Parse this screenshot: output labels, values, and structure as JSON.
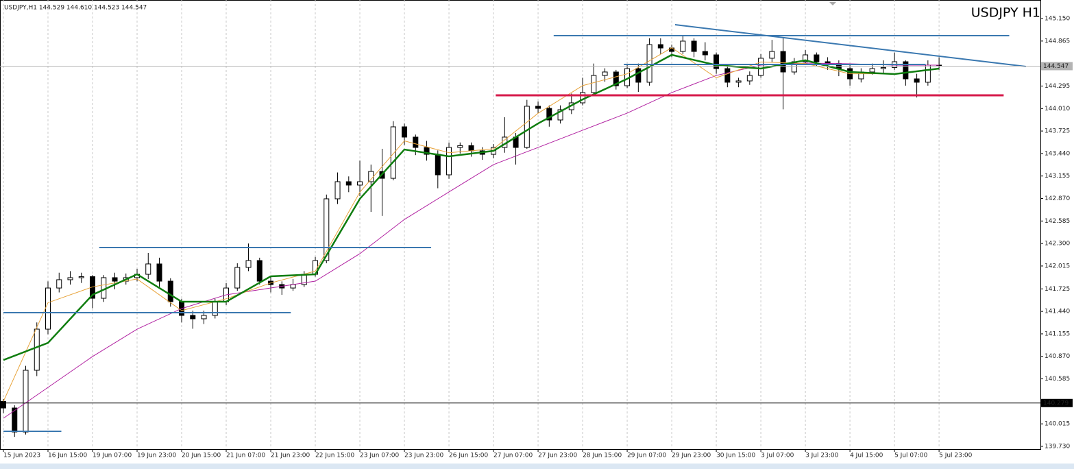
{
  "chart_data": {
    "type": "candlestick",
    "header": "USDJPY,H1  144.529 144.610 144.523 144.547",
    "title": "USDJPY H1",
    "bull_color": "#ffffff",
    "bear_color": "#000000",
    "wick_color": "#000000",
    "grid": true,
    "ylim": [
      139.695,
      145.385
    ],
    "xlim": [
      -0.3,
      93.1
    ],
    "yticks": [
      {
        "value": 145.15,
        "label": "145.150"
      },
      {
        "value": 144.865,
        "label": "144.865"
      },
      {
        "value": 144.295,
        "label": "144.295"
      },
      {
        "value": 144.01,
        "label": "144.010"
      },
      {
        "value": 143.725,
        "label": "143.725"
      },
      {
        "value": 143.44,
        "label": "143.440"
      },
      {
        "value": 143.155,
        "label": "143.155"
      },
      {
        "value": 142.87,
        "label": "142.870"
      },
      {
        "value": 142.585,
        "label": "142.585"
      },
      {
        "value": 142.3,
        "label": "142.300"
      },
      {
        "value": 142.015,
        "label": "142.015"
      },
      {
        "value": 141.725,
        "label": "141.725"
      },
      {
        "value": 141.44,
        "label": "141.440"
      },
      {
        "value": 141.155,
        "label": "141.155"
      },
      {
        "value": 140.87,
        "label": "140.870"
      },
      {
        "value": 140.585,
        "label": "140.585"
      },
      {
        "value": 140.015,
        "label": "140.015"
      },
      {
        "value": 139.73,
        "label": "139.730"
      }
    ],
    "xticks": [
      {
        "value": 0,
        "label": "15 Jun 2023"
      },
      {
        "value": 4,
        "label": "16 Jun 15:00"
      },
      {
        "value": 8,
        "label": "19 Jun 07:00"
      },
      {
        "value": 12,
        "label": "19 Jun 23:00"
      },
      {
        "value": 16,
        "label": "20 Jun 15:00"
      },
      {
        "value": 20,
        "label": "21 Jun 07:00"
      },
      {
        "value": 24,
        "label": "21 Jun 23:00"
      },
      {
        "value": 28,
        "label": "22 Jun 15:00"
      },
      {
        "value": 32,
        "label": "23 Jun 07:00"
      },
      {
        "value": 36,
        "label": "23 Jun 23:00"
      },
      {
        "value": 40,
        "label": "26 Jun 15:00"
      },
      {
        "value": 44,
        "label": "27 Jun 07:00"
      },
      {
        "value": 48,
        "label": "27 Jun 23:00"
      },
      {
        "value": 52,
        "label": "28 Jun 15:00"
      },
      {
        "value": 56,
        "label": "29 Jun 07:00"
      },
      {
        "value": 60,
        "label": "29 Jun 23:00"
      },
      {
        "value": 64,
        "label": "30 Jun 15:00"
      },
      {
        "value": 68,
        "label": "3 Jul 07:00"
      },
      {
        "value": 72,
        "label": "3 Jul 23:00"
      },
      {
        "value": 76,
        "label": "4 Jul 15:00"
      },
      {
        "value": 80,
        "label": "5 Jul 07:00"
      },
      {
        "value": 84,
        "label": "5 Jul 23:00"
      }
    ],
    "price_lines": [
      {
        "value": 144.547,
        "label": "144.547",
        "color": "#b4b4b4",
        "label_bg": "#b4b4b4",
        "label_color": "#ffffff"
      },
      {
        "value": 140.279,
        "label": "140.279",
        "color": "#000000",
        "label_bg": "#000000",
        "label_color": "#ffffff"
      }
    ],
    "ohlc": [
      [
        140.3,
        140.33,
        140.15,
        140.216
      ],
      [
        140.216,
        140.25,
        139.85,
        139.912
      ],
      [
        139.912,
        140.75,
        139.88,
        140.694
      ],
      [
        140.694,
        141.3,
        140.62,
        141.215
      ],
      [
        141.215,
        141.82,
        141.15,
        141.736
      ],
      [
        141.736,
        141.93,
        141.68,
        141.841
      ],
      [
        141.841,
        141.95,
        141.78,
        141.867
      ],
      [
        141.867,
        141.93,
        141.8,
        141.88
      ],
      [
        141.88,
        141.9,
        141.48,
        141.606
      ],
      [
        141.606,
        141.9,
        141.56,
        141.867
      ],
      [
        141.867,
        141.93,
        141.72,
        141.823
      ],
      [
        141.823,
        141.92,
        141.78,
        141.867
      ],
      [
        141.867,
        141.98,
        141.82,
        141.91
      ],
      [
        141.91,
        142.18,
        141.85,
        142.041
      ],
      [
        142.041,
        142.12,
        141.75,
        141.823
      ],
      [
        141.823,
        141.86,
        141.5,
        141.563
      ],
      [
        141.563,
        141.6,
        141.3,
        141.389
      ],
      [
        141.389,
        141.45,
        141.22,
        141.346
      ],
      [
        141.346,
        141.45,
        141.28,
        141.389
      ],
      [
        141.389,
        141.6,
        141.35,
        141.563
      ],
      [
        141.563,
        141.8,
        141.52,
        141.736
      ],
      [
        141.736,
        142.05,
        141.7,
        141.997
      ],
      [
        141.997,
        142.3,
        141.95,
        142.084
      ],
      [
        142.084,
        142.12,
        141.78,
        141.823
      ],
      [
        141.823,
        141.88,
        141.68,
        141.78
      ],
      [
        141.78,
        141.82,
        141.65,
        141.736
      ],
      [
        141.736,
        141.85,
        141.7,
        141.78
      ],
      [
        141.78,
        141.95,
        141.75,
        141.91
      ],
      [
        141.91,
        142.13,
        141.88,
        142.084
      ],
      [
        142.084,
        142.92,
        142.05,
        142.866
      ],
      [
        142.866,
        143.2,
        142.8,
        143.083
      ],
      [
        143.083,
        143.15,
        142.95,
        143.04
      ],
      [
        143.04,
        143.35,
        142.9,
        143.083
      ],
      [
        143.083,
        143.3,
        142.7,
        143.213
      ],
      [
        143.213,
        143.5,
        142.65,
        143.126
      ],
      [
        143.126,
        143.85,
        143.1,
        143.778
      ],
      [
        143.778,
        143.82,
        143.55,
        143.648
      ],
      [
        143.648,
        143.68,
        143.42,
        143.517
      ],
      [
        143.517,
        143.6,
        143.35,
        143.43
      ],
      [
        143.43,
        143.48,
        143.0,
        143.17
      ],
      [
        143.17,
        143.58,
        143.12,
        143.517
      ],
      [
        143.517,
        143.58,
        143.44,
        143.54
      ],
      [
        143.54,
        143.58,
        143.4,
        143.474
      ],
      [
        143.474,
        143.52,
        143.36,
        143.43
      ],
      [
        143.43,
        143.56,
        143.38,
        143.517
      ],
      [
        143.517,
        143.9,
        143.45,
        143.648
      ],
      [
        143.648,
        143.7,
        143.3,
        143.517
      ],
      [
        143.517,
        144.12,
        143.5,
        144.039
      ],
      [
        144.039,
        144.1,
        143.95,
        144.012
      ],
      [
        144.012,
        144.05,
        143.78,
        143.865
      ],
      [
        143.865,
        144.05,
        143.82,
        143.995
      ],
      [
        143.995,
        144.2,
        143.94,
        144.082
      ],
      [
        144.082,
        144.4,
        144.05,
        144.212
      ],
      [
        144.212,
        144.58,
        144.18,
        144.429
      ],
      [
        144.429,
        144.52,
        144.35,
        144.473
      ],
      [
        144.473,
        144.5,
        144.25,
        144.299
      ],
      [
        144.299,
        144.56,
        144.27,
        144.516
      ],
      [
        144.516,
        144.58,
        144.22,
        144.343
      ],
      [
        144.343,
        144.9,
        144.3,
        144.82
      ],
      [
        144.82,
        144.9,
        144.7,
        144.777
      ],
      [
        144.777,
        144.82,
        144.66,
        144.733
      ],
      [
        144.733,
        144.93,
        144.7,
        144.864
      ],
      [
        144.864,
        144.9,
        144.66,
        144.733
      ],
      [
        144.733,
        144.85,
        144.62,
        144.69
      ],
      [
        144.69,
        144.72,
        144.45,
        144.516
      ],
      [
        144.516,
        144.56,
        144.28,
        144.343
      ],
      [
        144.343,
        144.4,
        144.28,
        144.36
      ],
      [
        144.36,
        144.48,
        144.31,
        144.429
      ],
      [
        144.429,
        144.7,
        144.4,
        144.647
      ],
      [
        144.647,
        144.88,
        144.6,
        144.733
      ],
      [
        144.733,
        144.9,
        144.0,
        144.473
      ],
      [
        144.473,
        144.65,
        144.44,
        144.603
      ],
      [
        144.603,
        144.75,
        144.56,
        144.69
      ],
      [
        144.69,
        144.72,
        144.55,
        144.603
      ],
      [
        144.603,
        144.66,
        144.5,
        144.58
      ],
      [
        144.58,
        144.62,
        144.42,
        144.516
      ],
      [
        144.516,
        144.56,
        144.3,
        144.386
      ],
      [
        144.386,
        144.52,
        144.34,
        144.473
      ],
      [
        144.473,
        144.58,
        144.44,
        144.516
      ],
      [
        144.516,
        144.62,
        144.46,
        144.53
      ],
      [
        144.53,
        144.72,
        144.5,
        144.603
      ],
      [
        144.603,
        144.62,
        144.3,
        144.386
      ],
      [
        144.386,
        144.45,
        144.15,
        144.343
      ],
      [
        144.343,
        144.62,
        144.3,
        144.56
      ],
      [
        144.56,
        144.66,
        144.5,
        144.547
      ]
    ],
    "indicators": [
      {
        "color": "#b01fa0",
        "width": 1,
        "x": [
          0,
          4,
          8,
          12,
          16,
          20,
          24,
          28,
          32,
          36,
          40,
          44,
          48,
          52,
          56,
          60,
          64,
          68,
          72,
          76,
          80,
          84
        ],
        "values": [
          140.086,
          140.477,
          140.868,
          141.215,
          141.476,
          141.65,
          141.736,
          141.823,
          142.171,
          142.605,
          142.953,
          143.3,
          143.517,
          143.735,
          143.952,
          144.212,
          144.429,
          144.56,
          144.586,
          144.577,
          144.56,
          144.56
        ]
      },
      {
        "color": "#e8a33a",
        "width": 1,
        "x": [
          0,
          4,
          8,
          12,
          16,
          20,
          24,
          28,
          32,
          36,
          40,
          44,
          48,
          52,
          56,
          60,
          64,
          68,
          72,
          76,
          80,
          84
        ],
        "values": [
          140.3,
          141.55,
          141.75,
          141.85,
          141.45,
          141.6,
          141.8,
          141.95,
          142.95,
          143.6,
          143.45,
          143.5,
          143.95,
          144.3,
          144.45,
          144.78,
          144.4,
          144.6,
          144.58,
          144.45,
          144.45,
          144.52
        ]
      },
      {
        "color": "#0f7d0f",
        "width": 2.5,
        "x": [
          0,
          4,
          8,
          12,
          16,
          20,
          24,
          28,
          32,
          36,
          40,
          44,
          48,
          52,
          56,
          60,
          64,
          68,
          72,
          76,
          80,
          84
        ],
        "values": [
          140.824,
          141.041,
          141.65,
          141.91,
          141.563,
          141.563,
          141.884,
          141.91,
          142.866,
          143.491,
          143.404,
          143.474,
          143.821,
          144.125,
          144.386,
          144.69,
          144.56,
          144.516,
          144.621,
          144.473,
          144.447,
          144.516
        ]
      }
    ],
    "levels": [
      {
        "color": "#3a78b0",
        "width": 2,
        "x": [
          49.4,
          90.3
        ],
        "y": [
          144.933,
          144.933
        ]
      },
      {
        "color": "#d6194a",
        "width": 3,
        "x": [
          44.2,
          89.8
        ],
        "y": [
          144.178,
          144.178
        ]
      },
      {
        "color": "#3a78b0",
        "width": 2,
        "x": [
          55.7,
          82.8
        ],
        "y": [
          144.568,
          144.568
        ]
      },
      {
        "color": "#3a78b0",
        "width": 2,
        "x": [
          60.3,
          91.8
        ],
        "y": [
          145.072,
          144.542
        ]
      },
      {
        "color": "#3a78b0",
        "width": 2,
        "x": [
          8.6,
          38.4
        ],
        "y": [
          142.249,
          142.249
        ]
      },
      {
        "color": "#3a78b0",
        "width": 2,
        "x": [
          0,
          25.8
        ],
        "y": [
          141.424,
          141.424
        ]
      },
      {
        "color": "#3a78b0",
        "width": 2,
        "x": [
          0,
          5.2
        ],
        "y": [
          139.921,
          139.921
        ]
      }
    ]
  }
}
